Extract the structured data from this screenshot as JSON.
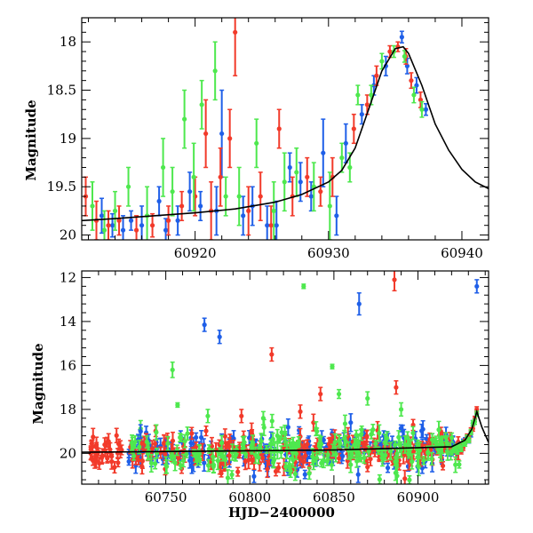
{
  "chart_data": [
    {
      "type": "scatter",
      "panel": "top",
      "title": "",
      "xlabel": "",
      "ylabel": "Magnitude",
      "xlim": [
        60911.5,
        60942
      ],
      "ylim": [
        20.05,
        17.75
      ],
      "y_inverted": true,
      "x_ticks": [
        60920,
        60930,
        60940
      ],
      "x_tick_labels": [
        "60920",
        "60930",
        "60940"
      ],
      "y_ticks": [
        18,
        18.5,
        19,
        19.5,
        20
      ],
      "y_tick_labels": [
        "18",
        "18.5",
        "19",
        "19.5",
        "20"
      ],
      "grid": false,
      "legend": "none",
      "colors": {
        "series_a": "#1f5fe8",
        "series_b": "#f23a2a",
        "series_c": "#4ee84e",
        "model": "#000000"
      },
      "model_curve": {
        "x": [
          60911.5,
          60914,
          60917,
          60920,
          60923,
          60926,
          60928,
          60930,
          60931,
          60932,
          60933,
          60934,
          60935,
          60935.6,
          60936,
          60937,
          60938,
          60939,
          60940,
          60941,
          60942
        ],
        "y": [
          19.85,
          19.83,
          19.8,
          19.77,
          19.73,
          19.66,
          19.58,
          19.45,
          19.33,
          19.1,
          18.7,
          18.3,
          18.07,
          18.05,
          18.12,
          18.45,
          18.85,
          19.12,
          19.32,
          19.45,
          19.52
        ]
      },
      "series": [
        {
          "points": [
            {
              "x": 60913.0,
              "y": 19.8,
              "err": 0.18
            },
            {
              "x": 60913.8,
              "y": 19.9,
              "err": 0.12
            },
            {
              "x": 60914.6,
              "y": 19.95,
              "err": 0.15
            },
            {
              "x": 60915.2,
              "y": 19.85,
              "err": 0.1
            },
            {
              "x": 60916.0,
              "y": 19.9,
              "err": 0.2
            },
            {
              "x": 60917.3,
              "y": 19.65,
              "err": 0.15
            },
            {
              "x": 60917.8,
              "y": 19.95,
              "err": 0.12
            },
            {
              "x": 60918.7,
              "y": 19.85,
              "err": 0.15
            },
            {
              "x": 60919.6,
              "y": 19.55,
              "err": 0.2
            },
            {
              "x": 60920.4,
              "y": 19.7,
              "err": 0.15
            },
            {
              "x": 60921.6,
              "y": 19.75,
              "err": 0.25
            },
            {
              "x": 60922.0,
              "y": 18.95,
              "err": 0.45
            },
            {
              "x": 60923.6,
              "y": 19.8,
              "err": 0.2
            },
            {
              "x": 60924.3,
              "y": 19.7,
              "err": 0.2
            },
            {
              "x": 60925.4,
              "y": 19.9,
              "err": 0.2
            },
            {
              "x": 60926.1,
              "y": 19.9,
              "err": 0.25
            },
            {
              "x": 60927.1,
              "y": 19.3,
              "err": 0.15
            },
            {
              "x": 60927.9,
              "y": 19.45,
              "err": 0.2
            },
            {
              "x": 60928.7,
              "y": 19.6,
              "err": 0.15
            },
            {
              "x": 60929.6,
              "y": 19.15,
              "err": 0.35
            },
            {
              "x": 60930.6,
              "y": 19.8,
              "err": 0.2
            },
            {
              "x": 60931.3,
              "y": 19.05,
              "err": 0.2
            },
            {
              "x": 60932.5,
              "y": 18.75,
              "err": 0.1
            },
            {
              "x": 60933.4,
              "y": 18.45,
              "err": 0.1
            },
            {
              "x": 60934.3,
              "y": 18.25,
              "err": 0.1
            },
            {
              "x": 60935.5,
              "y": 17.95,
              "err": 0.06
            },
            {
              "x": 60935.9,
              "y": 18.25,
              "err": 0.08
            },
            {
              "x": 60936.6,
              "y": 18.45,
              "err": 0.08
            },
            {
              "x": 60937.3,
              "y": 18.7,
              "err": 0.06
            }
          ]
        },
        {
          "points": [
            {
              "x": 60911.8,
              "y": 19.6,
              "err": 0.2
            },
            {
              "x": 60912.6,
              "y": 19.85,
              "err": 0.2
            },
            {
              "x": 60913.5,
              "y": 19.9,
              "err": 0.15
            },
            {
              "x": 60914.3,
              "y": 19.85,
              "err": 0.15
            },
            {
              "x": 60915.6,
              "y": 19.95,
              "err": 0.15
            },
            {
              "x": 60916.8,
              "y": 19.9,
              "err": 0.12
            },
            {
              "x": 60918.0,
              "y": 19.85,
              "err": 0.15
            },
            {
              "x": 60919.0,
              "y": 19.7,
              "err": 0.15
            },
            {
              "x": 60920.0,
              "y": 19.6,
              "err": 0.2
            },
            {
              "x": 60920.8,
              "y": 18.95,
              "err": 0.35
            },
            {
              "x": 60921.2,
              "y": 19.75,
              "err": 0.3
            },
            {
              "x": 60921.9,
              "y": 19.4,
              "err": 0.3
            },
            {
              "x": 60922.6,
              "y": 19.0,
              "err": 0.3
            },
            {
              "x": 60923.0,
              "y": 17.9,
              "err": 0.45
            },
            {
              "x": 60924.0,
              "y": 19.75,
              "err": 0.25
            },
            {
              "x": 60924.9,
              "y": 19.6,
              "err": 0.25
            },
            {
              "x": 60925.7,
              "y": 19.9,
              "err": 0.2
            },
            {
              "x": 60926.3,
              "y": 18.9,
              "err": 0.2
            },
            {
              "x": 60927.3,
              "y": 19.6,
              "err": 0.2
            },
            {
              "x": 60928.4,
              "y": 19.4,
              "err": 0.2
            },
            {
              "x": 60929.4,
              "y": 19.55,
              "err": 0.15
            },
            {
              "x": 60930.3,
              "y": 19.4,
              "err": 0.2
            },
            {
              "x": 60931.9,
              "y": 18.9,
              "err": 0.15
            },
            {
              "x": 60932.9,
              "y": 18.65,
              "err": 0.1
            },
            {
              "x": 60933.6,
              "y": 18.35,
              "err": 0.1
            },
            {
              "x": 60934.6,
              "y": 18.1,
              "err": 0.06
            },
            {
              "x": 60935.2,
              "y": 18.05,
              "err": 0.05
            },
            {
              "x": 60935.8,
              "y": 18.15,
              "err": 0.08
            },
            {
              "x": 60936.2,
              "y": 18.4,
              "err": 0.08
            },
            {
              "x": 60936.9,
              "y": 18.6,
              "err": 0.08
            }
          ]
        },
        {
          "points": [
            {
              "x": 60912.3,
              "y": 19.7,
              "err": 0.25
            },
            {
              "x": 60913.2,
              "y": 19.95,
              "err": 0.2
            },
            {
              "x": 60914.0,
              "y": 19.75,
              "err": 0.2
            },
            {
              "x": 60915.0,
              "y": 19.5,
              "err": 0.2
            },
            {
              "x": 60916.4,
              "y": 19.8,
              "err": 0.3
            },
            {
              "x": 60917.6,
              "y": 19.3,
              "err": 0.3
            },
            {
              "x": 60918.3,
              "y": 19.55,
              "err": 0.25
            },
            {
              "x": 60919.2,
              "y": 18.8,
              "err": 0.3
            },
            {
              "x": 60919.9,
              "y": 19.4,
              "err": 0.35
            },
            {
              "x": 60920.5,
              "y": 18.65,
              "err": 0.25
            },
            {
              "x": 60921.5,
              "y": 18.3,
              "err": 0.3
            },
            {
              "x": 60922.3,
              "y": 19.6,
              "err": 0.2
            },
            {
              "x": 60923.3,
              "y": 19.6,
              "err": 0.3
            },
            {
              "x": 60924.6,
              "y": 19.05,
              "err": 0.25
            },
            {
              "x": 60925.9,
              "y": 19.75,
              "err": 0.3
            },
            {
              "x": 60926.7,
              "y": 19.45,
              "err": 0.3
            },
            {
              "x": 60927.6,
              "y": 19.35,
              "err": 0.25
            },
            {
              "x": 60928.9,
              "y": 19.5,
              "err": 0.25
            },
            {
              "x": 60930.1,
              "y": 19.7,
              "err": 0.35
            },
            {
              "x": 60931.0,
              "y": 19.2,
              "err": 0.15
            },
            {
              "x": 60931.6,
              "y": 19.3,
              "err": 0.15
            },
            {
              "x": 60932.2,
              "y": 18.55,
              "err": 0.1
            },
            {
              "x": 60933.2,
              "y": 18.55,
              "err": 0.1
            },
            {
              "x": 60934.0,
              "y": 18.2,
              "err": 0.08
            },
            {
              "x": 60934.9,
              "y": 18.1,
              "err": 0.06
            },
            {
              "x": 60935.7,
              "y": 18.15,
              "err": 0.06
            },
            {
              "x": 60936.4,
              "y": 18.55,
              "err": 0.08
            },
            {
              "x": 60937.0,
              "y": 18.7,
              "err": 0.08
            }
          ]
        }
      ]
    },
    {
      "type": "scatter",
      "panel": "bottom",
      "title": "",
      "xlabel": "HJD−2400000",
      "ylabel": "Magnitude",
      "xlim": [
        60700,
        60942
      ],
      "ylim": [
        21.4,
        11.7
      ],
      "y_inverted": true,
      "x_ticks": [
        60750,
        60800,
        60850,
        60900
      ],
      "x_tick_labels": [
        "60750",
        "60800",
        "60850",
        "60900"
      ],
      "y_ticks": [
        12,
        14,
        16,
        18,
        20
      ],
      "y_tick_labels": [
        "12",
        "14",
        "16",
        "18",
        "20"
      ],
      "grid": false,
      "legend": "none",
      "baseline": {
        "x_start": 60705,
        "x_end": 60925,
        "mean_mag": 19.9,
        "scatter": 0.45,
        "n_points_per_series": 220
      },
      "model_curve": {
        "x": [
          60700,
          60850,
          60920,
          60928,
          60932,
          60935,
          60938,
          60942
        ],
        "y": [
          19.95,
          19.85,
          19.7,
          19.4,
          18.9,
          18.1,
          18.8,
          19.5
        ]
      },
      "series": [
        {
          "outliers": [
            {
              "x": 60773,
              "y": 14.15,
              "err": 0.3
            },
            {
              "x": 60782,
              "y": 14.7,
              "err": 0.3
            },
            {
              "x": 60865,
              "y": 13.2,
              "err": 0.5
            },
            {
              "x": 60935,
              "y": 12.4,
              "err": 0.3
            },
            {
              "x": 60735,
              "y": 19.0,
              "err": 0.3
            },
            {
              "x": 60860,
              "y": 18.6,
              "err": 0.4
            }
          ]
        },
        {
          "outliers": [
            {
              "x": 60813,
              "y": 15.5,
              "err": 0.3
            },
            {
              "x": 60842,
              "y": 17.3,
              "err": 0.3
            },
            {
              "x": 60886,
              "y": 12.1,
              "err": 0.5
            },
            {
              "x": 60887,
              "y": 17.0,
              "err": 0.3
            },
            {
              "x": 60830,
              "y": 18.1,
              "err": 0.3
            },
            {
              "x": 60795,
              "y": 18.3,
              "err": 0.3
            }
          ]
        },
        {
          "outliers": [
            {
              "x": 60754,
              "y": 16.2,
              "err": 0.35
            },
            {
              "x": 60832,
              "y": 12.4,
              "err": 0.1
            },
            {
              "x": 60849,
              "y": 16.05,
              "err": 0.1
            },
            {
              "x": 60757,
              "y": 17.8,
              "err": 0.1
            },
            {
              "x": 60775,
              "y": 18.3,
              "err": 0.3
            },
            {
              "x": 60808,
              "y": 18.4,
              "err": 0.3
            },
            {
              "x": 60853,
              "y": 17.3,
              "err": 0.2
            },
            {
              "x": 60870,
              "y": 17.5,
              "err": 0.3
            },
            {
              "x": 60890,
              "y": 18.0,
              "err": 0.3
            }
          ]
        }
      ]
    }
  ]
}
